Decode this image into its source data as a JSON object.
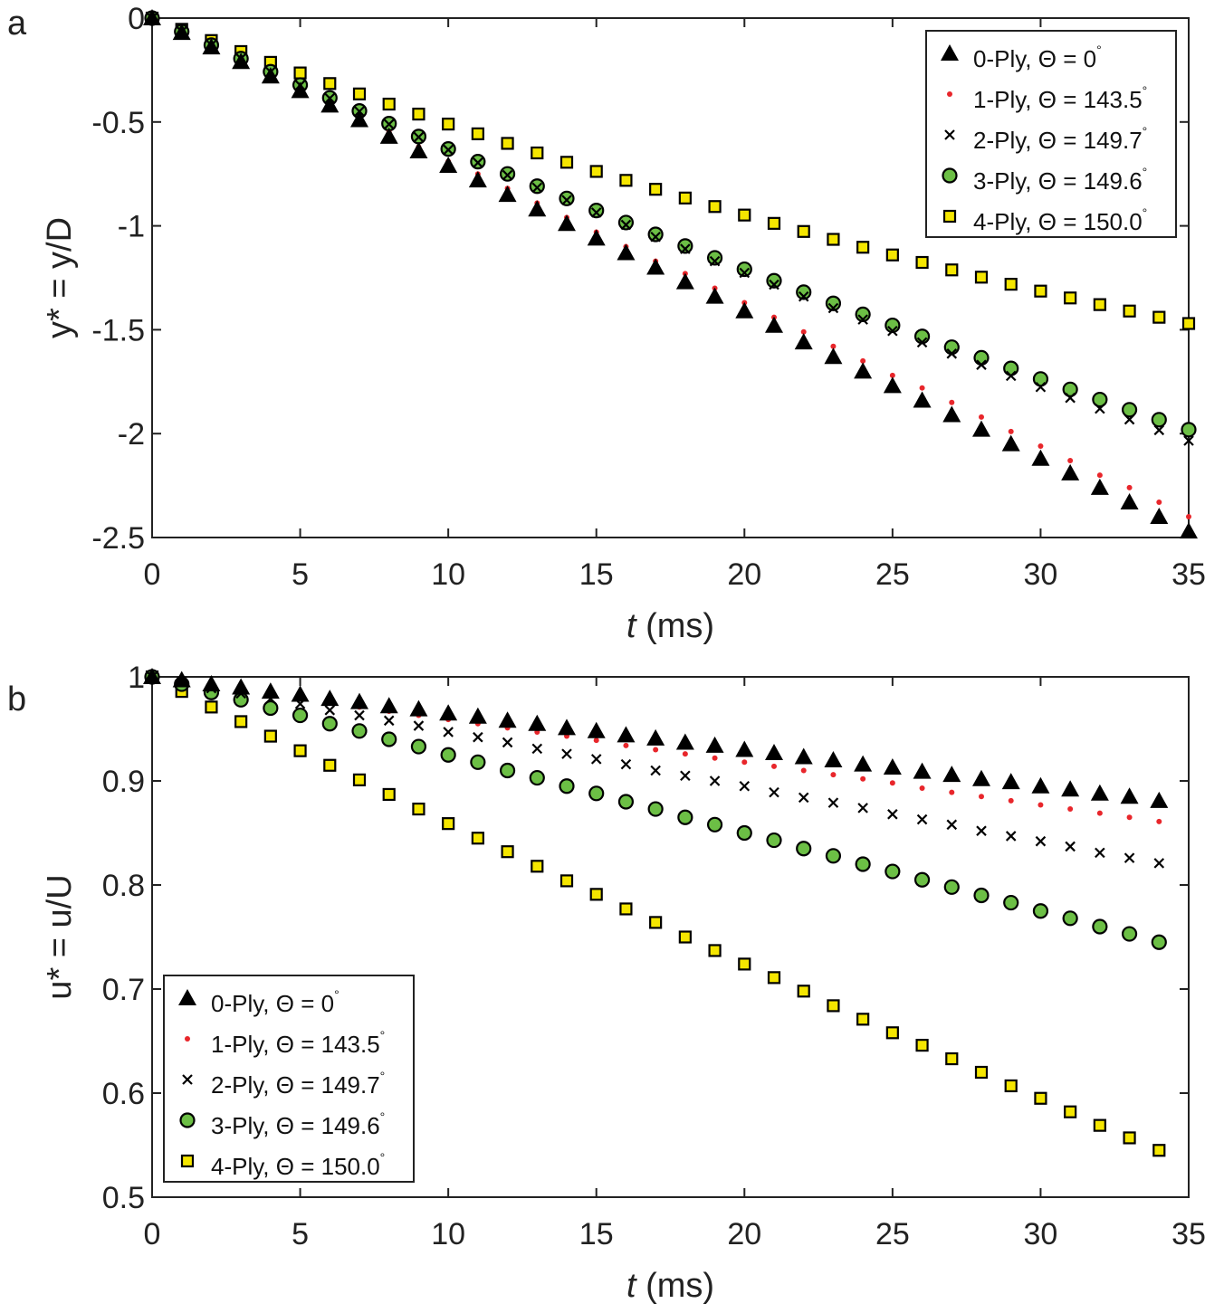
{
  "chart_data": [
    {
      "type": "scatter",
      "panel_label": "a",
      "xlabel_italic": "t",
      "xlabel_rest": " (ms)",
      "ylabel": "y* = y/D",
      "xlim": [
        0,
        35
      ],
      "ylim": [
        -2.5,
        0
      ],
      "xticks": [
        0,
        5,
        10,
        15,
        20,
        25,
        30,
        35
      ],
      "yticks": [
        0,
        -0.5,
        -1,
        -1.5,
        -2,
        -2.5
      ],
      "ytick_labels": [
        "0",
        "-0.5",
        "-1",
        "-1.5",
        "-2",
        "-2.5"
      ],
      "legend_position": "top-right",
      "x": [
        0,
        1,
        2,
        3,
        4,
        5,
        6,
        7,
        8,
        9,
        10,
        11,
        12,
        13,
        14,
        15,
        16,
        17,
        18,
        19,
        20,
        21,
        22,
        23,
        24,
        25,
        26,
        27,
        28,
        29,
        30,
        31,
        32,
        33,
        34,
        35
      ],
      "series": [
        {
          "name": "0-Ply, Θ = 0°",
          "marker": "triangle",
          "values": [
            0,
            -0.07,
            -0.14,
            -0.21,
            -0.28,
            -0.35,
            -0.42,
            -0.49,
            -0.57,
            -0.64,
            -0.71,
            -0.78,
            -0.85,
            -0.92,
            -0.99,
            -1.06,
            -1.13,
            -1.2,
            -1.27,
            -1.34,
            -1.41,
            -1.48,
            -1.56,
            -1.63,
            -1.7,
            -1.77,
            -1.84,
            -1.91,
            -1.98,
            -2.05,
            -2.12,
            -2.19,
            -2.26,
            -2.33,
            -2.4,
            -2.47
          ]
        },
        {
          "name": "1-Ply, Θ = 143.5°",
          "marker": "dot",
          "values": [
            0,
            -0.07,
            -0.14,
            -0.21,
            -0.27,
            -0.34,
            -0.41,
            -0.48,
            -0.55,
            -0.62,
            -0.69,
            -0.75,
            -0.82,
            -0.89,
            -0.96,
            -1.03,
            -1.1,
            -1.17,
            -1.23,
            -1.3,
            -1.37,
            -1.44,
            -1.51,
            -1.58,
            -1.65,
            -1.72,
            -1.78,
            -1.85,
            -1.92,
            -1.99,
            -2.06,
            -2.13,
            -2.2,
            -2.26,
            -2.33,
            -2.4
          ]
        },
        {
          "name": "2-Ply, Θ = 149.7°",
          "marker": "x",
          "values": [
            0,
            -0.065,
            -0.13,
            -0.195,
            -0.259,
            -0.323,
            -0.386,
            -0.449,
            -0.511,
            -0.573,
            -0.634,
            -0.696,
            -0.756,
            -0.816,
            -0.876,
            -0.936,
            -0.995,
            -1.053,
            -1.111,
            -1.17,
            -1.226,
            -1.283,
            -1.34,
            -1.396,
            -1.451,
            -1.506,
            -1.561,
            -1.615,
            -1.669,
            -1.722,
            -1.776,
            -1.828,
            -1.88,
            -1.932,
            -1.983,
            -2.034
          ]
        },
        {
          "name": "3-Ply, Θ = 149.6°",
          "marker": "circle",
          "values": [
            0,
            -0.065,
            -0.13,
            -0.195,
            -0.258,
            -0.322,
            -0.384,
            -0.447,
            -0.508,
            -0.57,
            -0.63,
            -0.691,
            -0.75,
            -0.809,
            -0.868,
            -0.926,
            -0.984,
            -1.041,
            -1.097,
            -1.154,
            -1.209,
            -1.264,
            -1.319,
            -1.373,
            -1.426,
            -1.479,
            -1.532,
            -1.584,
            -1.635,
            -1.686,
            -1.737,
            -1.787,
            -1.836,
            -1.885,
            -1.933,
            -1.981
          ]
        },
        {
          "name": "4-Ply, Θ = 150.0°",
          "marker": "square",
          "values": [
            0,
            -0.054,
            -0.108,
            -0.161,
            -0.213,
            -0.264,
            -0.315,
            -0.365,
            -0.414,
            -0.462,
            -0.51,
            -0.557,
            -0.603,
            -0.649,
            -0.694,
            -0.738,
            -0.781,
            -0.824,
            -0.866,
            -0.907,
            -0.948,
            -0.988,
            -1.027,
            -1.065,
            -1.103,
            -1.14,
            -1.176,
            -1.212,
            -1.247,
            -1.281,
            -1.314,
            -1.347,
            -1.379,
            -1.41,
            -1.44,
            -1.47
          ]
        }
      ]
    },
    {
      "type": "scatter",
      "panel_label": "b",
      "xlabel_italic": "t",
      "xlabel_rest": " (ms)",
      "ylabel": "u* = u/U",
      "xlim": [
        0,
        35
      ],
      "ylim": [
        0.5,
        1
      ],
      "xticks": [
        0,
        5,
        10,
        15,
        20,
        25,
        30,
        35
      ],
      "yticks": [
        1,
        0.9,
        0.8,
        0.7,
        0.6,
        0.5
      ],
      "ytick_labels": [
        "1",
        "0.9",
        "0.8",
        "0.7",
        "0.6",
        "0.5"
      ],
      "legend_position": "bottom-left",
      "x": [
        0,
        1,
        2,
        3,
        4,
        5,
        6,
        7,
        8,
        9,
        10,
        11,
        12,
        13,
        14,
        15,
        16,
        17,
        18,
        19,
        20,
        21,
        22,
        23,
        24,
        25,
        26,
        27,
        28,
        29,
        30,
        31,
        32,
        33,
        34
      ],
      "series": [
        {
          "name": "0-Ply, Θ = 0°",
          "marker": "triangle",
          "values": [
            1,
            0.997,
            0.993,
            0.99,
            0.986,
            0.983,
            0.979,
            0.976,
            0.972,
            0.969,
            0.965,
            0.962,
            0.958,
            0.955,
            0.951,
            0.948,
            0.944,
            0.941,
            0.937,
            0.934,
            0.93,
            0.927,
            0.923,
            0.92,
            0.916,
            0.913,
            0.909,
            0.906,
            0.902,
            0.899,
            0.895,
            0.892,
            0.888,
            0.885,
            0.881
          ]
        },
        {
          "name": "1-Ply, Θ = 143.5°",
          "marker": "dot",
          "values": [
            1,
            0.996,
            0.992,
            0.988,
            0.984,
            0.98,
            0.975,
            0.971,
            0.967,
            0.963,
            0.959,
            0.955,
            0.951,
            0.947,
            0.943,
            0.939,
            0.934,
            0.93,
            0.926,
            0.922,
            0.918,
            0.914,
            0.91,
            0.906,
            0.902,
            0.898,
            0.893,
            0.889,
            0.885,
            0.881,
            0.877,
            0.873,
            0.869,
            0.865,
            0.861
          ]
        },
        {
          "name": "2-Ply, Θ = 149.7°",
          "marker": "x",
          "values": [
            1,
            0.995,
            0.989,
            0.984,
            0.979,
            0.974,
            0.968,
            0.963,
            0.958,
            0.953,
            0.947,
            0.942,
            0.937,
            0.931,
            0.926,
            0.921,
            0.916,
            0.91,
            0.905,
            0.9,
            0.895,
            0.889,
            0.884,
            0.879,
            0.874,
            0.868,
            0.863,
            0.858,
            0.852,
            0.847,
            0.842,
            0.837,
            0.831,
            0.826,
            0.821
          ]
        },
        {
          "name": "3-Ply, Θ = 149.6°",
          "marker": "circle",
          "values": [
            1,
            0.993,
            0.985,
            0.978,
            0.97,
            0.963,
            0.955,
            0.948,
            0.94,
            0.933,
            0.925,
            0.918,
            0.91,
            0.903,
            0.895,
            0.888,
            0.88,
            0.873,
            0.865,
            0.858,
            0.85,
            0.843,
            0.835,
            0.828,
            0.82,
            0.813,
            0.805,
            0.798,
            0.79,
            0.783,
            0.775,
            0.768,
            0.76,
            0.753,
            0.745
          ]
        },
        {
          "name": "4-Ply, Θ = 150.0°",
          "marker": "square",
          "values": [
            1,
            0.986,
            0.971,
            0.957,
            0.943,
            0.929,
            0.915,
            0.901,
            0.887,
            0.873,
            0.859,
            0.845,
            0.832,
            0.818,
            0.804,
            0.791,
            0.777,
            0.764,
            0.75,
            0.737,
            0.724,
            0.711,
            0.698,
            0.684,
            0.671,
            0.658,
            0.646,
            0.633,
            0.62,
            0.607,
            0.595,
            0.582,
            0.569,
            0.557,
            0.545
          ]
        }
      ]
    }
  ],
  "colors": {
    "triangle": "#000000",
    "dot": "#e8262b",
    "x": "#000000",
    "circle": "#6cbf45",
    "square": "#f5e600"
  }
}
